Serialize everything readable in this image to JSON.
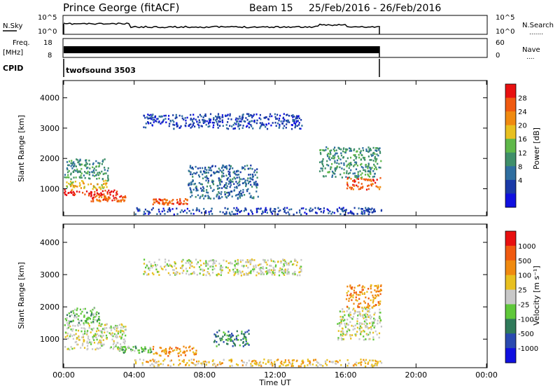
{
  "header": {
    "station": "Prince George (fitACF)",
    "beam": "Beam 15",
    "dates": "25/Feb/2016 - 26/Feb/2016"
  },
  "nsky_panel": {
    "left_label": "N.Sky",
    "left_ticks": [
      "10^5",
      "10^0"
    ],
    "right_ticks": [
      "10^5",
      "10^0"
    ],
    "right_label": "N.Search",
    "right_legend": "......."
  },
  "freq_panel": {
    "left_label_1": "Freq.",
    "left_label_2": "[MHz]",
    "left_ticks": [
      "18",
      "8"
    ],
    "right_ticks": [
      "60",
      "0"
    ],
    "right_label": "Nave",
    "right_legend": "...."
  },
  "cpid": {
    "label": "CPID",
    "value": "twofsound 3503"
  },
  "x_axis": {
    "label": "Time UT",
    "ticks": [
      "00:00",
      "04:00",
      "08:00",
      "12:00",
      "16:00",
      "20:00",
      "00:00"
    ]
  },
  "power_panel": {
    "ylabel": "Slant Range [km]",
    "yticks": [
      "1000",
      "2000",
      "3000",
      "4000"
    ],
    "colorbar_label": "Power [dB]",
    "colorbar_ticks": [
      "4",
      "8",
      "12",
      "16",
      "20",
      "24",
      "28"
    ],
    "colors": [
      "#1010e0",
      "#1a3aa8",
      "#2f6ea0",
      "#3f8f6a",
      "#5fb84a",
      "#e8c020",
      "#f08a10",
      "#f05a10",
      "#e81010"
    ]
  },
  "velocity_panel": {
    "ylabel": "Slant Range [km]",
    "yticks": [
      "1000",
      "2000",
      "3000",
      "4000"
    ],
    "colorbar_label": "Velocity [m s⁻¹]",
    "colorbar_ticks": [
      "1000",
      "500",
      "100",
      "25",
      "-25",
      "-100",
      "-500",
      "-1000"
    ],
    "colors": [
      "#1010e0",
      "#2a4ab0",
      "#2f7a5a",
      "#5fc83a",
      "#c8c8c8",
      "#e8c020",
      "#f08a10",
      "#f05a10",
      "#e81010"
    ]
  },
  "chart_data": {
    "type": "heatmap",
    "x_range_hours": [
      0,
      24
    ],
    "y_range_km": [
      180,
      4500
    ],
    "data_end_hour": 18,
    "power_regions": [
      {
        "t": [
          0.0,
          3.0
        ],
        "r": [
          800,
          1000
        ],
        "level": 8
      },
      {
        "t": [
          1.5,
          3.5
        ],
        "r": [
          600,
          800
        ],
        "level": 7
      },
      {
        "t": [
          0.0,
          2.5
        ],
        "r": [
          1000,
          1300
        ],
        "level": 5
      },
      {
        "t": [
          0.0,
          2.5
        ],
        "r": [
          1300,
          2000
        ],
        "level": 3
      },
      {
        "t": [
          5.0,
          7.0
        ],
        "r": [
          500,
          700
        ],
        "level": 7
      },
      {
        "t": [
          16.0,
          18.0
        ],
        "r": [
          1000,
          1400
        ],
        "level": 7
      },
      {
        "t": [
          14.5,
          18.0
        ],
        "r": [
          1400,
          2400
        ],
        "level": 3
      },
      {
        "t": [
          7.0,
          11.0
        ],
        "r": [
          700,
          1800
        ],
        "level": 2
      },
      {
        "t": [
          4.0,
          18.0
        ],
        "r": [
          180,
          400
        ],
        "level": 1
      },
      {
        "t": [
          4.5,
          13.5
        ],
        "r": [
          3000,
          3500
        ],
        "level": 1
      }
    ],
    "velocity_regions": [
      {
        "t": [
          0.0,
          3.5
        ],
        "r": [
          700,
          1500
        ],
        "level": 4
      },
      {
        "t": [
          0.0,
          2.0
        ],
        "r": [
          1500,
          2000
        ],
        "level": 3
      },
      {
        "t": [
          3.0,
          5.0
        ],
        "r": [
          600,
          800
        ],
        "level": 3
      },
      {
        "t": [
          5.0,
          7.5
        ],
        "r": [
          500,
          800
        ],
        "level": 6
      },
      {
        "t": [
          8.5,
          10.5
        ],
        "r": [
          800,
          1300
        ],
        "level": 2
      },
      {
        "t": [
          15.5,
          18.0
        ],
        "r": [
          1000,
          2000
        ],
        "level": 4
      },
      {
        "t": [
          16.0,
          18.0
        ],
        "r": [
          2000,
          2700
        ],
        "level": 6
      },
      {
        "t": [
          4.0,
          18.0
        ],
        "r": [
          180,
          400
        ],
        "level": 5
      },
      {
        "t": [
          4.5,
          13.5
        ],
        "r": [
          3000,
          3500
        ],
        "level": 4
      }
    ]
  }
}
